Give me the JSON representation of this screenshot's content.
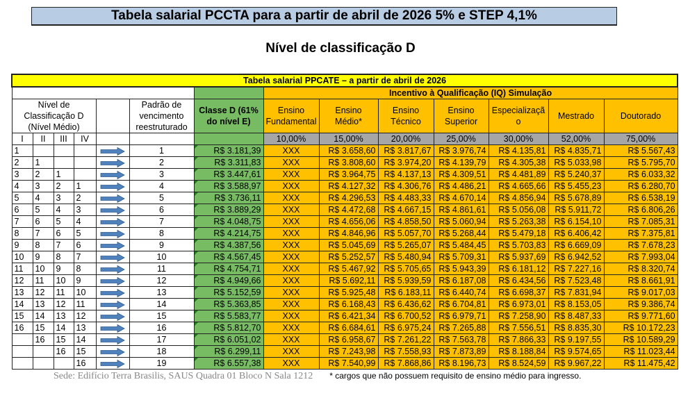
{
  "title": "Tabela salarial PCCTA para a partir de abril de 2026 5% e STEP 4,1%",
  "subtitle": "Nível de classificação D",
  "table": {
    "caption": "Tabela salarial PPCATE – a partir de abril de 2026",
    "iq_header": "Incentivo à Qualificação (IQ) Simulação",
    "nivel_header": "Nível de Classificação D (Nível Médio)",
    "padrao_header": "Padrão de vencimento reestruturado",
    "classe_header": "Classe D (61% do nível E)",
    "sub_levels": [
      "I",
      "II",
      "III",
      "IV"
    ],
    "iq_columns": [
      {
        "label": "Ensino Fundamental",
        "pct": "10,00%"
      },
      {
        "label": "Ensino Médio*",
        "pct": "15,00%"
      },
      {
        "label": "Ensino Técnico",
        "pct": "20,00%"
      },
      {
        "label": "Ensino Superior",
        "pct": "25,00%"
      },
      {
        "label": "Especializaçã o",
        "pct": "30,00%"
      },
      {
        "label": "Mestrado",
        "pct": "52,00%"
      },
      {
        "label": "Doutorado",
        "pct": "75,00%"
      }
    ],
    "rows": [
      {
        "levels": [
          "1",
          "",
          "",
          ""
        ],
        "padrao": "1",
        "classe": "R$ 3.181,39",
        "iq": [
          "XXX",
          "R$ 3.658,60",
          "R$ 3.817,67",
          "R$ 3.976,74",
          "R$ 4.135,81",
          "R$ 4.835,71",
          "R$ 5.567,43"
        ]
      },
      {
        "levels": [
          "2",
          "1",
          "",
          ""
        ],
        "padrao": "2",
        "classe": "R$ 3.311,83",
        "iq": [
          "XXX",
          "R$ 3.808,60",
          "R$ 3.974,20",
          "R$ 4.139,79",
          "R$ 4.305,38",
          "R$ 5.033,98",
          "R$ 5.795,70"
        ]
      },
      {
        "levels": [
          "3",
          "2",
          "1",
          ""
        ],
        "padrao": "3",
        "classe": "R$ 3.447,61",
        "iq": [
          "XXX",
          "R$ 3.964,75",
          "R$ 4.137,13",
          "R$ 4.309,51",
          "R$ 4.481,89",
          "R$ 5.240,37",
          "R$ 6.033,32"
        ]
      },
      {
        "levels": [
          "4",
          "3",
          "2",
          "1"
        ],
        "padrao": "4",
        "classe": "R$ 3.588,97",
        "iq": [
          "XXX",
          "R$ 4.127,32",
          "R$ 4.306,76",
          "R$ 4.486,21",
          "R$ 4.665,66",
          "R$ 5.455,23",
          "R$ 6.280,70"
        ]
      },
      {
        "levels": [
          "5",
          "4",
          "3",
          "2"
        ],
        "padrao": "5",
        "classe": "R$ 3.736,11",
        "iq": [
          "XXX",
          "R$ 4.296,53",
          "R$ 4.483,33",
          "R$ 4.670,14",
          "R$ 4.856,94",
          "R$ 5.678,89",
          "R$ 6.538,19"
        ]
      },
      {
        "levels": [
          "6",
          "5",
          "4",
          "3"
        ],
        "padrao": "6",
        "classe": "R$ 3.889,29",
        "iq": [
          "XXX",
          "R$ 4.472,68",
          "R$ 4.667,15",
          "R$ 4.861,61",
          "R$ 5.056,08",
          "R$ 5.911,72",
          "R$ 6.806,26"
        ]
      },
      {
        "levels": [
          "7",
          "6",
          "5",
          "4"
        ],
        "padrao": "7",
        "classe": "R$ 4.048,75",
        "iq": [
          "XXX",
          "R$ 4.656,06",
          "R$ 4.858,50",
          "R$ 5.060,94",
          "R$ 5.263,38",
          "R$ 6.154,10",
          "R$ 7.085,31"
        ]
      },
      {
        "levels": [
          "8",
          "7",
          "6",
          "5"
        ],
        "padrao": "8",
        "classe": "R$ 4.214,75",
        "iq": [
          "XXX",
          "R$ 4.846,96",
          "R$ 5.057,70",
          "R$ 5.268,44",
          "R$ 5.479,18",
          "R$ 6.406,42",
          "R$ 7.375,81"
        ]
      },
      {
        "levels": [
          "9",
          "8",
          "7",
          "6"
        ],
        "padrao": "9",
        "classe": "R$ 4.387,56",
        "iq": [
          "XXX",
          "R$ 5.045,69",
          "R$ 5.265,07",
          "R$ 5.484,45",
          "R$ 5.703,83",
          "R$ 6.669,09",
          "R$ 7.678,23"
        ]
      },
      {
        "levels": [
          "10",
          "9",
          "8",
          "7"
        ],
        "padrao": "10",
        "classe": "R$ 4.567,45",
        "iq": [
          "XXX",
          "R$ 5.252,57",
          "R$ 5.480,94",
          "R$ 5.709,31",
          "R$ 5.937,69",
          "R$ 6.942,52",
          "R$ 7.993,04"
        ]
      },
      {
        "levels": [
          "11",
          "10",
          "9",
          "8"
        ],
        "padrao": "11",
        "classe": "R$ 4.754,71",
        "iq": [
          "XXX",
          "R$ 5.467,92",
          "R$ 5.705,65",
          "R$ 5.943,39",
          "R$ 6.181,12",
          "R$ 7.227,16",
          "R$ 8.320,74"
        ]
      },
      {
        "levels": [
          "12",
          "11",
          "10",
          "9"
        ],
        "padrao": "12",
        "classe": "R$ 4.949,66",
        "iq": [
          "XXX",
          "R$ 5.692,11",
          "R$ 5.939,59",
          "R$ 6.187,08",
          "R$ 6.434,56",
          "R$ 7.523,48",
          "R$ 8.661,91"
        ]
      },
      {
        "levels": [
          "13",
          "12",
          "11",
          "10"
        ],
        "padrao": "13",
        "classe": "R$ 5.152,59",
        "iq": [
          "XXX",
          "R$ 5.925,48",
          "R$ 6.183,11",
          "R$ 6.440,74",
          "R$ 6.698,37",
          "R$ 7.831,94",
          "R$ 9.017,03"
        ]
      },
      {
        "levels": [
          "14",
          "13",
          "12",
          "11"
        ],
        "padrao": "14",
        "classe": "R$ 5.363,85",
        "iq": [
          "XXX",
          "R$ 6.168,43",
          "R$ 6.436,62",
          "R$ 6.704,81",
          "R$ 6.973,01",
          "R$ 8.153,05",
          "R$ 9.386,74"
        ]
      },
      {
        "levels": [
          "15",
          "14",
          "13",
          "12"
        ],
        "padrao": "15",
        "classe": "R$ 5.583,77",
        "iq": [
          "XXX",
          "R$ 6.421,34",
          "R$ 6.700,52",
          "R$ 6.979,71",
          "R$ 7.258,90",
          "R$ 8.487,33",
          "R$ 9.771,60"
        ]
      },
      {
        "levels": [
          "16",
          "15",
          "14",
          "13"
        ],
        "padrao": "16",
        "classe": "R$ 5.812,70",
        "iq": [
          "XXX",
          "R$ 6.684,61",
          "R$ 6.975,24",
          "R$ 7.265,88",
          "R$ 7.556,51",
          "R$ 8.835,30",
          "R$ 10.172,23"
        ]
      },
      {
        "levels": [
          "",
          "16",
          "15",
          "14"
        ],
        "padrao": "17",
        "classe": "R$ 6.051,02",
        "iq": [
          "XXX",
          "R$ 6.958,67",
          "R$ 7.261,22",
          "R$ 7.563,78",
          "R$ 7.866,33",
          "R$ 9.197,55",
          "R$ 10.589,29"
        ]
      },
      {
        "levels": [
          "",
          "",
          "16",
          "15"
        ],
        "padrao": "18",
        "classe": "R$ 6.299,11",
        "iq": [
          "XXX",
          "R$ 7.243,98",
          "R$ 7.558,93",
          "R$ 7.873,89",
          "R$ 8.188,84",
          "R$ 9.574,65",
          "R$ 11.023,44"
        ]
      },
      {
        "levels": [
          "",
          "",
          "",
          "16"
        ],
        "padrao": "19",
        "classe": "R$ 6.557,38",
        "iq": [
          "XXX",
          "R$ 7.540,99",
          "R$ 7.868,86",
          "R$ 8.196,73",
          "R$ 8.524,59",
          "R$ 9.967,22",
          "R$ 11.475,42"
        ]
      }
    ]
  },
  "footer": {
    "background_text": "Sede: Edifício Terra Brasilis, SAUS Quadra 01 Bloco N Sala 1212",
    "note": "* cargos que  não possuem requisito de ensino médio para ingresso."
  },
  "colors": {
    "title_bg": "#b8cce4",
    "caption_bg": "#ffff00",
    "iq_bg": "#ffc000",
    "classe_bg": "#77bb63",
    "pct_bg": "#a6a6a6",
    "arrow": "#4f81bd"
  }
}
